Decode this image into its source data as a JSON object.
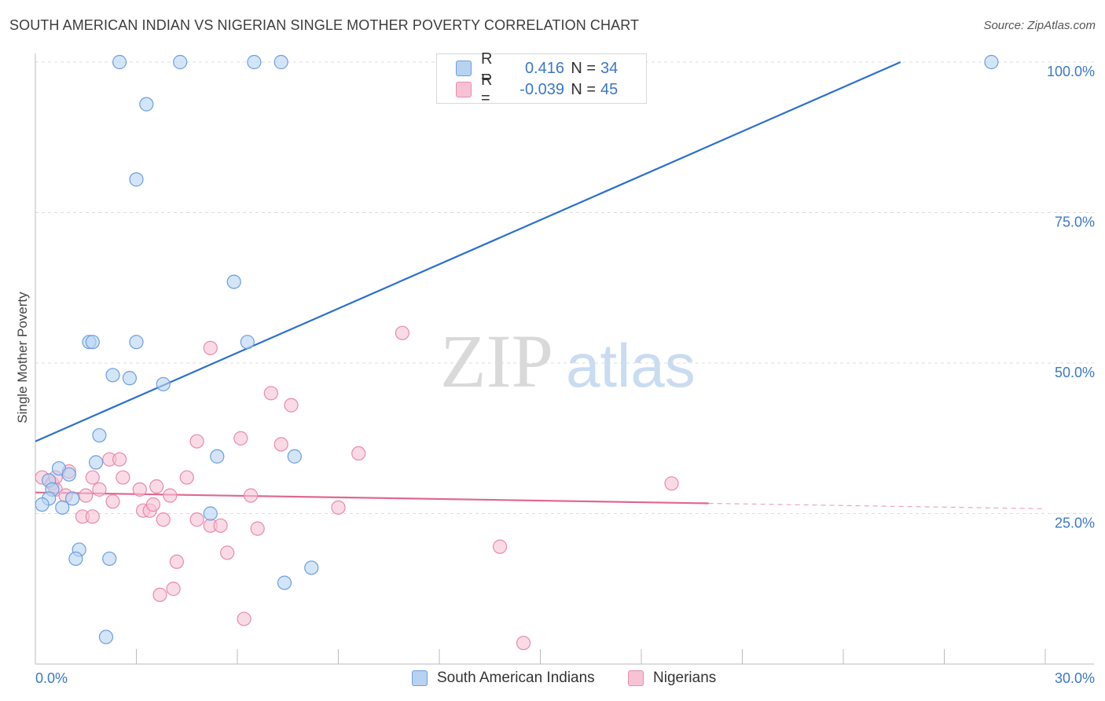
{
  "title": "SOUTH AMERICAN INDIAN VS NIGERIAN SINGLE MOTHER POVERTY CORRELATION CHART",
  "source": "Source: ZipAtlas.com",
  "watermark": {
    "zip": "ZIP",
    "atlas": "atlas"
  },
  "legend": {
    "rows": [
      {
        "r_label": "R =",
        "r_value": "0.416",
        "n_label": "N =",
        "n_value": "34"
      },
      {
        "r_label": "R =",
        "r_value": "-0.039",
        "n_label": "N =",
        "n_value": "45"
      }
    ]
  },
  "bottom_legend": {
    "series1": "South American Indians",
    "series2": "Nigerians"
  },
  "colors": {
    "blue_fill": "#b8d3f2",
    "blue_stroke": "#6a9fe0",
    "blue_line": "#2b6fcf",
    "pink_fill": "#f7c3d4",
    "pink_stroke": "#e98aab",
    "pink_line": "#e06890",
    "axis_label": "#3a78c9"
  },
  "chart_data": {
    "type": "scatter",
    "title": "SOUTH AMERICAN INDIAN VS NIGERIAN SINGLE MOTHER POVERTY CORRELATION CHART",
    "xlabel": "",
    "ylabel": "Single Mother Poverty",
    "xlim": [
      0,
      30
    ],
    "ylim": [
      0,
      100
    ],
    "x_tick_labels": [
      "0.0%",
      "30.0%"
    ],
    "y_tick_labels": [
      "100.0%",
      "75.0%",
      "50.0%",
      "25.0%"
    ],
    "y_ticks": [
      100,
      75,
      50,
      25
    ],
    "grid": true,
    "series": [
      {
        "name": "South American Indians",
        "r": 0.416,
        "n": 34,
        "points": [
          [
            2.5,
            100
          ],
          [
            4.3,
            100
          ],
          [
            6.5,
            100
          ],
          [
            7.3,
            100
          ],
          [
            28.4,
            100
          ],
          [
            3.3,
            93
          ],
          [
            3.0,
            80.5
          ],
          [
            5.9,
            63.5
          ],
          [
            1.6,
            53.5
          ],
          [
            1.7,
            53.5
          ],
          [
            3.0,
            53.5
          ],
          [
            6.3,
            53.5
          ],
          [
            2.3,
            48
          ],
          [
            2.8,
            47.5
          ],
          [
            3.8,
            46.5
          ],
          [
            1.9,
            38
          ],
          [
            1.8,
            33.5
          ],
          [
            5.4,
            34.5
          ],
          [
            7.7,
            34.5
          ],
          [
            0.7,
            32.5
          ],
          [
            1.0,
            31.5
          ],
          [
            0.4,
            30.5
          ],
          [
            0.5,
            29
          ],
          [
            0.4,
            27.5
          ],
          [
            1.1,
            27.5
          ],
          [
            0.2,
            26.5
          ],
          [
            0.8,
            26
          ],
          [
            5.2,
            25
          ],
          [
            1.3,
            19
          ],
          [
            1.2,
            17.5
          ],
          [
            2.2,
            17.5
          ],
          [
            8.2,
            16
          ],
          [
            7.4,
            13.5
          ],
          [
            2.1,
            4.5
          ]
        ],
        "trend": {
          "x": [
            0,
            25.7
          ],
          "y": [
            37,
            100
          ]
        }
      },
      {
        "name": "Nigerians",
        "r": -0.039,
        "n": 45,
        "points": [
          [
            0.2,
            31
          ],
          [
            0.5,
            30
          ],
          [
            0.6,
            31
          ],
          [
            1.0,
            32
          ],
          [
            0.6,
            29
          ],
          [
            0.9,
            28
          ],
          [
            1.7,
            31
          ],
          [
            1.5,
            28
          ],
          [
            1.9,
            29
          ],
          [
            2.3,
            27
          ],
          [
            2.2,
            34
          ],
          [
            2.5,
            34
          ],
          [
            2.6,
            31
          ],
          [
            3.2,
            25.5
          ],
          [
            3.4,
            25.5
          ],
          [
            3.1,
            29
          ],
          [
            3.5,
            26.5
          ],
          [
            3.6,
            29.5
          ],
          [
            3.8,
            24
          ],
          [
            4.0,
            28
          ],
          [
            4.5,
            31
          ],
          [
            4.8,
            24
          ],
          [
            5.2,
            23
          ],
          [
            5.5,
            23
          ],
          [
            5.7,
            18.5
          ],
          [
            6.1,
            37.5
          ],
          [
            6.4,
            28
          ],
          [
            6.6,
            22.5
          ],
          [
            7.0,
            45
          ],
          [
            7.3,
            36.5
          ],
          [
            7.6,
            43
          ],
          [
            9.0,
            26
          ],
          [
            9.6,
            35
          ],
          [
            10.9,
            55
          ],
          [
            13.8,
            19.5
          ],
          [
            18.9,
            30
          ],
          [
            5.2,
            52.5
          ],
          [
            4.8,
            37
          ],
          [
            1.4,
            24.5
          ],
          [
            1.7,
            24.5
          ],
          [
            4.2,
            17
          ],
          [
            4.1,
            12.5
          ],
          [
            3.7,
            11.5
          ],
          [
            6.2,
            7.5
          ],
          [
            14.5,
            3.5
          ]
        ],
        "trend": {
          "x": [
            0,
            20
          ],
          "y": [
            28.5,
            26.7
          ]
        },
        "trend_dashed": {
          "x": [
            20,
            30
          ],
          "y": [
            26.7,
            25.8
          ]
        }
      }
    ]
  }
}
